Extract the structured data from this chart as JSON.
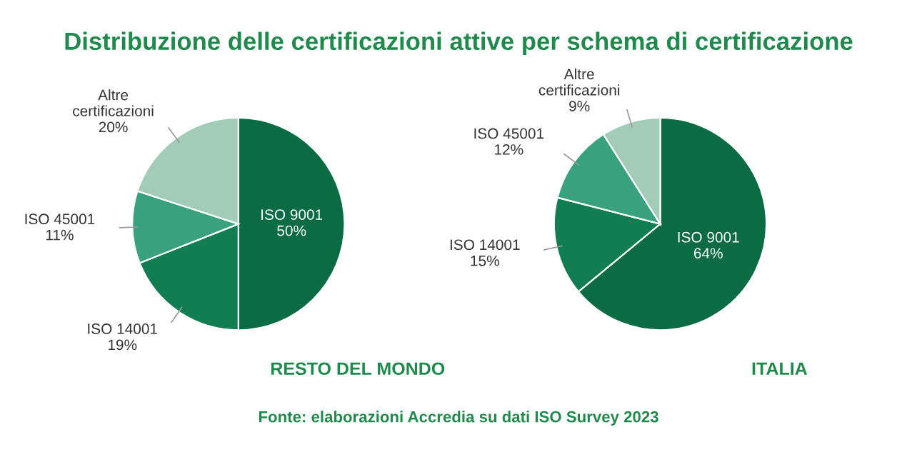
{
  "chart_data": [
    {
      "type": "pie",
      "title": "Distribuzione delle certificazioni attive per schema di certificazione",
      "subtitle": "RESTO DEL MONDO",
      "categories": [
        "ISO 9001",
        "ISO 14001",
        "ISO 45001",
        "Altre certificazioni"
      ],
      "values": [
        50,
        19,
        11,
        20
      ],
      "value_labels": [
        "50%",
        "19%",
        "11%",
        "20%"
      ],
      "colors": [
        "#0b6b43",
        "#137d52",
        "#3aa17f",
        "#a2ccb7"
      ],
      "annotations": [
        "Fonte: elaborazioni Accredia su dati ISO Survey 2023"
      ]
    },
    {
      "type": "pie",
      "subtitle": "ITALIA",
      "categories": [
        "ISO 9001",
        "ISO 14001",
        "ISO 45001",
        "Altre certificazioni"
      ],
      "values": [
        64,
        15,
        12,
        9
      ],
      "value_labels": [
        "64%",
        "15%",
        "12%",
        "9%"
      ],
      "colors": [
        "#0b6b43",
        "#137d52",
        "#3aa17f",
        "#a2ccb7"
      ]
    }
  ]
}
